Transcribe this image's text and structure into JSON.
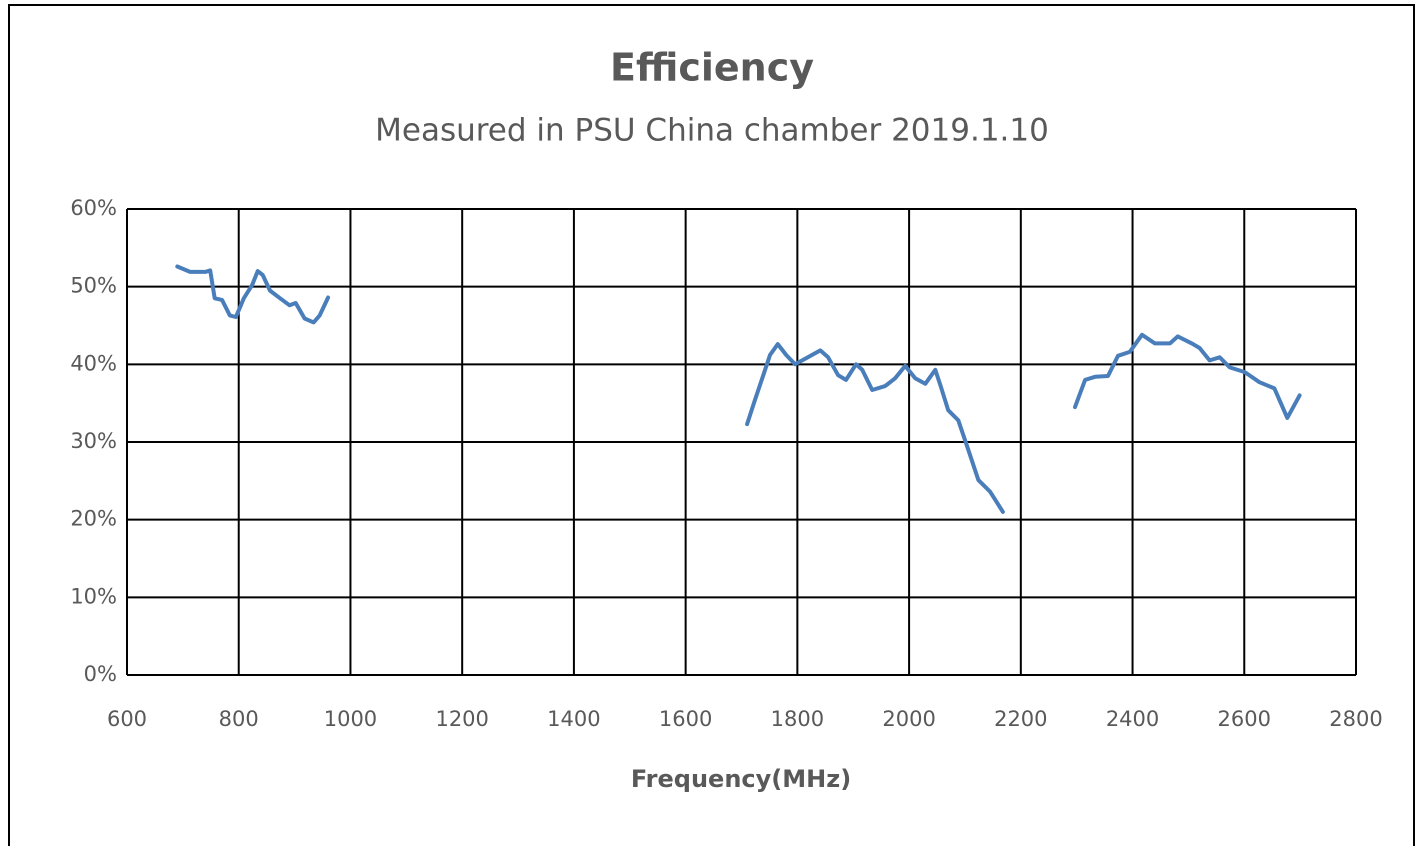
{
  "chart_data": {
    "type": "line",
    "title": "Efficiency",
    "subtitle": "Measured in PSU China chamber 2019.1.10",
    "x_label": "Frequency(MHz)",
    "x": [
      690,
      713,
      740,
      749,
      757,
      770,
      784,
      795,
      809,
      824,
      834,
      843,
      856,
      874,
      891,
      902,
      918,
      934,
      945,
      960,
      null,
      1710,
      1724,
      1739,
      1751,
      1765,
      1780,
      1796,
      1816,
      1841,
      1855,
      1873,
      1887,
      1905,
      1916,
      1934,
      1957,
      1975,
      1993,
      2011,
      2029,
      2047,
      2056,
      2070,
      2088,
      2106,
      2124,
      2145,
      2168,
      null,
      2297,
      2315,
      2333,
      2356,
      2374,
      2395,
      2417,
      2440,
      2467,
      2481,
      2506,
      2520,
      2538,
      2556,
      2574,
      2601,
      2627,
      2654,
      2677,
      2699
    ],
    "series": [
      {
        "color": "#4a7ebb",
        "values": [
          52.6,
          51.9,
          51.9,
          52.1,
          48.5,
          48.3,
          46.3,
          46.1,
          48.5,
          50.2,
          52,
          51.5,
          49.5,
          48.5,
          47.6,
          47.9,
          45.9,
          45.4,
          46.3,
          48.6,
          null,
          32.3,
          35.4,
          38.6,
          41.2,
          42.6,
          41.2,
          40,
          40.8,
          41.8,
          40.9,
          38.6,
          38,
          40,
          39.3,
          36.7,
          37.2,
          38.2,
          39.8,
          38.2,
          37.5,
          39.3,
          37.3,
          34.1,
          32.8,
          29,
          25.1,
          23.6,
          21,
          null,
          34.5,
          38,
          38.4,
          38.5,
          41.1,
          41.6,
          43.8,
          42.7,
          42.7,
          43.6,
          42.7,
          42.1,
          40.5,
          40.9,
          39.6,
          39,
          37.7,
          36.9,
          33.1,
          36
        ]
      }
    ],
    "xlim": [
      600,
      2800
    ],
    "xticks": [
      600,
      800,
      1000,
      1200,
      1400,
      1600,
      1800,
      2000,
      2200,
      2400,
      2600,
      2800
    ],
    "ylim": [
      0,
      60
    ],
    "yticks": [
      {
        "value": 0,
        "label": "0%"
      },
      {
        "value": 10,
        "label": "10%"
      },
      {
        "value": 20,
        "label": "20%"
      },
      {
        "value": 30,
        "label": "30%"
      },
      {
        "value": 40,
        "label": "40%"
      },
      {
        "value": 50,
        "label": "50%"
      },
      {
        "value": 60,
        "label": "60%"
      }
    ],
    "grid": true
  }
}
